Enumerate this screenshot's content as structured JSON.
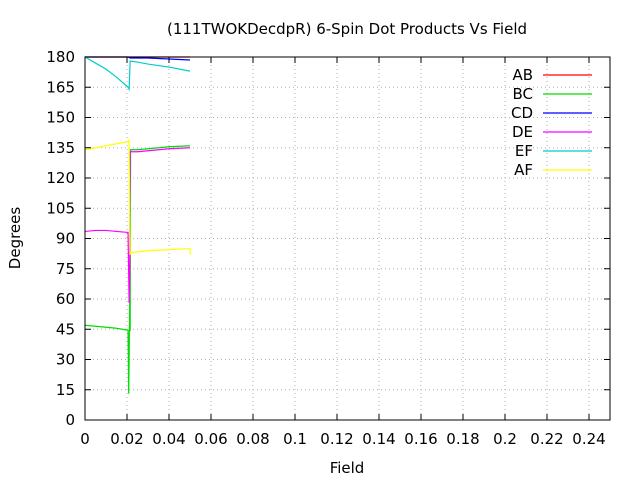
{
  "chart_data": {
    "type": "line",
    "title": "(111TWOKDecdpR) 6-Spin Dot Products Vs Field",
    "xlabel": "Field",
    "ylabel": "Degrees",
    "xlim": [
      0,
      0.25
    ],
    "ylim": [
      0,
      180
    ],
    "xticks": [
      "0",
      "0.02",
      "0.04",
      "0.06",
      "0.08",
      "0.1",
      "0.12",
      "0.14",
      "0.16",
      "0.18",
      "0.2",
      "0.22",
      "0.24"
    ],
    "yticks": [
      "0",
      "15",
      "30",
      "45",
      "60",
      "75",
      "90",
      "105",
      "120",
      "135",
      "150",
      "165",
      "180"
    ],
    "grid": true,
    "legend_position": "top-right",
    "series": [
      {
        "name": "AB",
        "color": "#ff0000",
        "points": [
          [
            0,
            180
          ],
          [
            0.0205,
            180
          ],
          [
            0.0215,
            180
          ],
          [
            0.03,
            180
          ],
          [
            0.04,
            180
          ],
          [
            0.05,
            180
          ]
        ]
      },
      {
        "name": "BC",
        "color": "#00dd00",
        "points": [
          [
            0,
            47
          ],
          [
            0.005,
            46.5
          ],
          [
            0.01,
            46
          ],
          [
            0.015,
            45.5
          ],
          [
            0.0205,
            44.5
          ],
          [
            0.0208,
            13
          ],
          [
            0.021,
            30
          ],
          [
            0.0213,
            60
          ],
          [
            0.0215,
            44
          ],
          [
            0.0217,
            134
          ],
          [
            0.025,
            134
          ],
          [
            0.03,
            134.5
          ],
          [
            0.04,
            135.5
          ],
          [
            0.05,
            136
          ]
        ]
      },
      {
        "name": "CD",
        "color": "#0000ff",
        "points": [
          [
            0,
            180
          ],
          [
            0.0205,
            180
          ],
          [
            0.0215,
            179.5
          ],
          [
            0.03,
            179.5
          ],
          [
            0.04,
            179
          ],
          [
            0.05,
            178.5
          ]
        ]
      },
      {
        "name": "DE",
        "color": "#ff00ff",
        "points": [
          [
            0,
            93.5
          ],
          [
            0.005,
            94
          ],
          [
            0.01,
            94
          ],
          [
            0.015,
            93.5
          ],
          [
            0.0205,
            93
          ],
          [
            0.021,
            58
          ],
          [
            0.0213,
            75
          ],
          [
            0.0215,
            133
          ],
          [
            0.025,
            133
          ],
          [
            0.03,
            133.5
          ],
          [
            0.04,
            134.5
          ],
          [
            0.05,
            135
          ]
        ]
      },
      {
        "name": "EF",
        "color": "#00cccc",
        "points": [
          [
            0,
            180
          ],
          [
            0.005,
            177
          ],
          [
            0.01,
            174
          ],
          [
            0.015,
            170
          ],
          [
            0.0205,
            165
          ],
          [
            0.021,
            164
          ],
          [
            0.0215,
            178
          ],
          [
            0.025,
            177.5
          ],
          [
            0.03,
            176.5
          ],
          [
            0.04,
            175
          ],
          [
            0.05,
            173
          ]
        ]
      },
      {
        "name": "AF",
        "color": "#ffff00",
        "points": [
          [
            0,
            134
          ],
          [
            0.005,
            135
          ],
          [
            0.01,
            136
          ],
          [
            0.015,
            137
          ],
          [
            0.0205,
            138
          ],
          [
            0.021,
            139
          ],
          [
            0.0213,
            105
          ],
          [
            0.0215,
            82
          ],
          [
            0.022,
            83
          ],
          [
            0.03,
            84
          ],
          [
            0.04,
            84.5
          ],
          [
            0.05,
            85
          ],
          [
            0.0502,
            82
          ]
        ]
      }
    ]
  }
}
